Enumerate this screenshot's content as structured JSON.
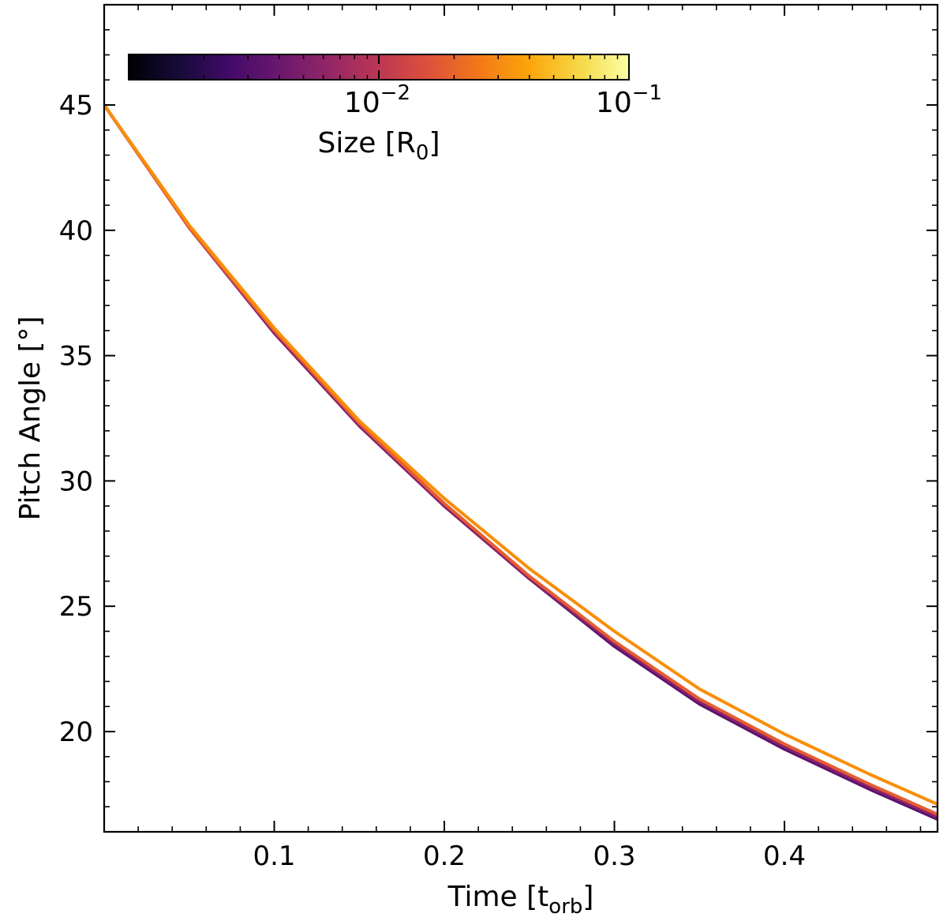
{
  "chart_data": {
    "type": "line",
    "xlabel": "Time [t",
    "xlabel_sub": "orb",
    "xlabel_end": "]",
    "ylabel": "Pitch Angle [°]",
    "xlim": [
      0.0,
      0.49
    ],
    "ylim": [
      16.0,
      49.0
    ],
    "xticks": [
      0.1,
      0.2,
      0.3,
      0.4
    ],
    "xtick_labels": [
      "0.1",
      "0.2",
      "0.3",
      "0.4"
    ],
    "yticks": [
      20,
      25,
      30,
      35,
      40,
      45
    ],
    "ytick_labels": [
      "20",
      "25",
      "30",
      "35",
      "40",
      "45"
    ],
    "grid": false,
    "colorbar": {
      "label": "Size [R",
      "label_sub": "0",
      "label_end": "]",
      "scale": "log",
      "cmap": "inferno",
      "range": [
        0.001,
        0.1
      ],
      "tick_labels": [
        {
          "value": 0.01,
          "base": "10",
          "exp": "−2"
        },
        {
          "value": 0.1,
          "base": "10",
          "exp": "−1"
        }
      ],
      "location": "top-left"
    },
    "x": [
      0.0,
      0.05,
      0.1,
      0.15,
      0.2,
      0.25,
      0.3,
      0.35,
      0.4,
      0.45,
      0.49
    ],
    "series": [
      {
        "size": 0.004,
        "color": "#5c126e",
        "values": [
          45.0,
          40.1,
          35.9,
          32.2,
          29.0,
          26.1,
          23.4,
          21.1,
          19.3,
          17.7,
          16.5
        ]
      },
      {
        "size": 0.007,
        "color": "#8a226a",
        "values": [
          45.0,
          40.1,
          35.9,
          32.2,
          29.0,
          26.1,
          23.5,
          21.2,
          19.4,
          17.8,
          16.6
        ]
      },
      {
        "size": 0.02,
        "color": "#e55c30",
        "values": [
          45.0,
          40.1,
          36.0,
          32.3,
          29.1,
          26.2,
          23.6,
          21.3,
          19.5,
          17.9,
          16.7
        ]
      },
      {
        "size": 0.04,
        "color": "#f98e09",
        "values": [
          45.0,
          40.2,
          36.1,
          32.4,
          29.3,
          26.5,
          24.0,
          21.7,
          19.9,
          18.3,
          17.1
        ]
      }
    ]
  }
}
